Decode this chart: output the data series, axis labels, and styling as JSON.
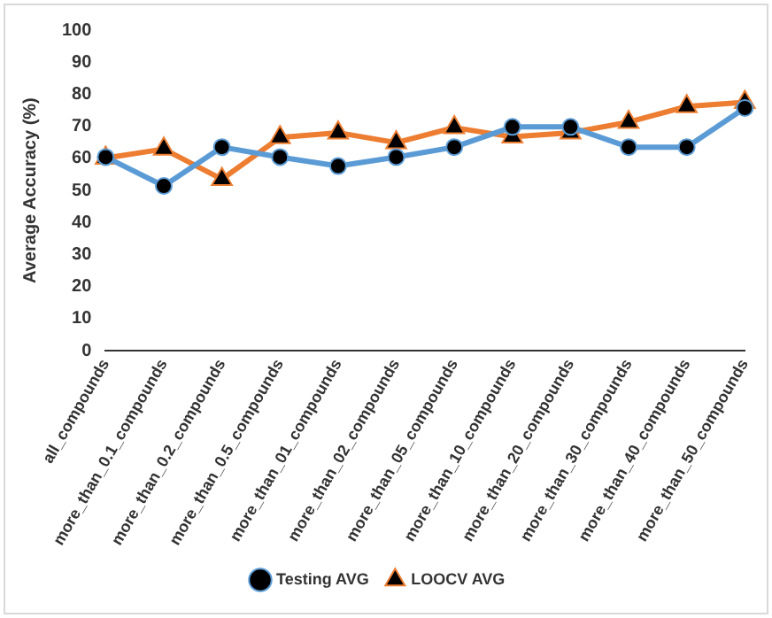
{
  "chart_data": {
    "type": "line",
    "ylabel": "Average Accuracy (%)",
    "categories": [
      "all_compounds",
      "more_than_0.1_compounds",
      "more_than_0.2_compounds",
      "more_than_0.5_compounds",
      "more_than_01_compounds",
      "more_than_02_compounds",
      "more_than_05_compounds",
      "more_than_10_compounds",
      "more_than_20_compounds",
      "more_than_30_compounds",
      "more_than_40_compounds",
      "more_than_50_compounds"
    ],
    "series": [
      {
        "name": "Testing AVG",
        "color": "#5b9bd5",
        "marker": "circle",
        "values": [
          60.4,
          51.4,
          63.5,
          60.4,
          57.6,
          60.4,
          63.5,
          69.8,
          69.8,
          63.5,
          63.5,
          75.7
        ]
      },
      {
        "name": "LOOCV AVG",
        "color": "#ed7d31",
        "marker": "triangle",
        "values": [
          60.1,
          62.9,
          53.5,
          66.5,
          68,
          64.9,
          69.6,
          66.7,
          68,
          71.3,
          76.2,
          77.5
        ]
      }
    ],
    "ylim": [
      0,
      100
    ],
    "yticks": [
      0,
      10,
      20,
      30,
      40,
      50,
      60,
      70,
      80,
      90,
      100
    ],
    "grid": false,
    "legend": "bottom"
  }
}
